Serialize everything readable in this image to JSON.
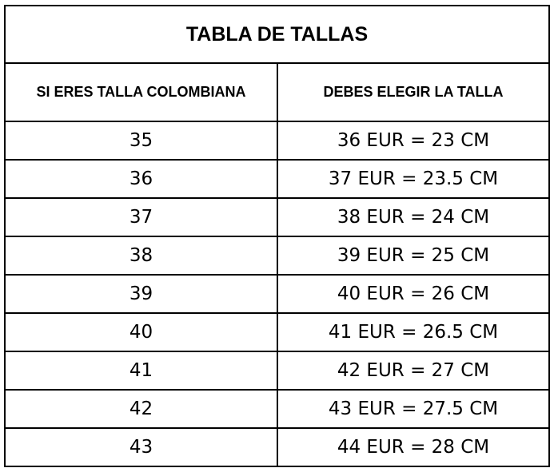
{
  "title": "TABLA DE TALLAS",
  "headers": [
    "SI ERES TALLA COLOMBIANA",
    "DEBES ELEGIR LA TALLA"
  ],
  "rows": [
    [
      "35",
      "36 EUR = 23 CM"
    ],
    [
      "36",
      "37 EUR = 23.5 CM"
    ],
    [
      "37",
      "38 EUR = 24 CM"
    ],
    [
      "38",
      "39 EUR = 25 CM"
    ],
    [
      "39",
      "40 EUR = 26 CM"
    ],
    [
      "40",
      "41 EUR = 26.5 CM"
    ],
    [
      "41",
      "42 EUR = 27 CM"
    ],
    [
      "42",
      "43 EUR = 27.5 CM"
    ],
    [
      "43",
      "44 EUR = 28 CM"
    ]
  ]
}
